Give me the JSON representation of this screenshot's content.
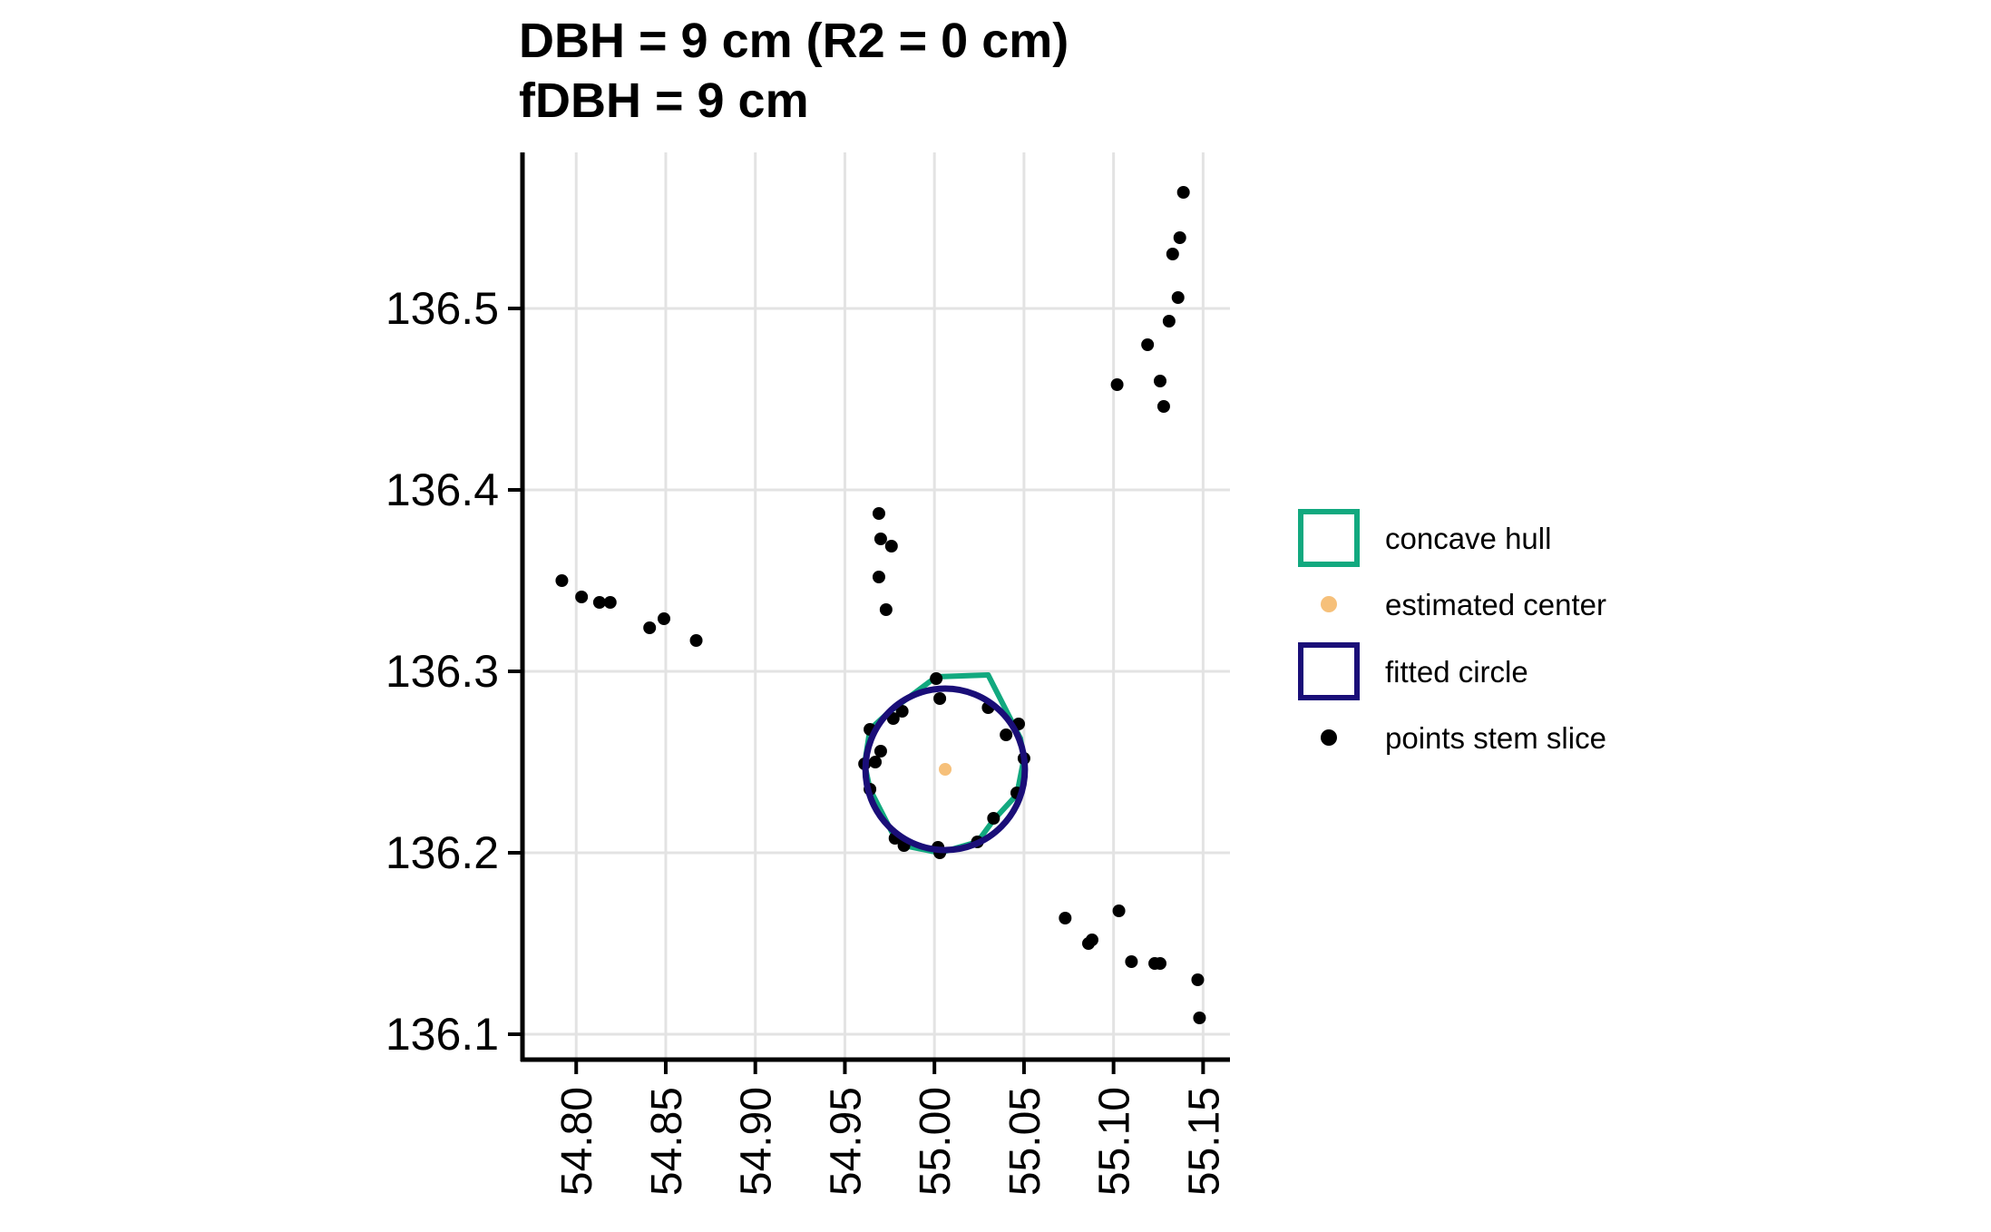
{
  "chart_data": {
    "type": "scatter",
    "title_lines": [
      "DBH = 9 cm (R2 = 0 cm)",
      "fDBH = 9 cm"
    ],
    "xlabel": "",
    "ylabel": "",
    "xlim": [
      54.77,
      55.165
    ],
    "ylim": [
      136.086,
      136.586
    ],
    "x_ticks": [
      54.8,
      54.85,
      54.9,
      54.95,
      55.0,
      55.05,
      55.1,
      55.15
    ],
    "x_tick_labels": [
      "54.80",
      "54.85",
      "54.90",
      "54.95",
      "55.00",
      "55.05",
      "55.10",
      "55.15"
    ],
    "y_ticks": [
      136.1,
      136.2,
      136.3,
      136.4,
      136.5
    ],
    "y_tick_labels": [
      "136.1",
      "136.2",
      "136.3",
      "136.4",
      "136.5"
    ],
    "grid": true,
    "legend_position": "right",
    "legend": [
      {
        "label": "concave hull",
        "kind": "hull-square"
      },
      {
        "label": "estimated center",
        "kind": "center-dot"
      },
      {
        "label": "fitted circle",
        "kind": "circle-square"
      },
      {
        "label": "points stem slice",
        "kind": "point-dot"
      }
    ],
    "colors": {
      "hull": "#12a97f",
      "circle": "#1a0e78",
      "center": "#f6c07a",
      "points": "#000000",
      "grid": "#e3e3e3"
    },
    "fitted_circle": {
      "cx": 55.006,
      "cy": 136.246,
      "r": 0.0445
    },
    "estimated_center": {
      "x": 55.006,
      "y": 136.246
    },
    "concave_hull": [
      [
        55.001,
        136.297
      ],
      [
        55.03,
        136.298
      ],
      [
        55.048,
        136.263
      ],
      [
        55.05,
        136.252
      ],
      [
        55.046,
        136.232
      ],
      [
        55.033,
        136.218
      ],
      [
        55.024,
        136.206
      ],
      [
        55.003,
        136.2
      ],
      [
        54.983,
        136.204
      ],
      [
        54.978,
        136.208
      ],
      [
        54.964,
        136.235
      ],
      [
        54.961,
        136.249
      ],
      [
        54.964,
        136.268
      ],
      [
        54.974,
        136.277
      ],
      [
        55.001,
        136.297
      ]
    ],
    "points": [
      [
        54.792,
        136.35
      ],
      [
        54.803,
        136.341
      ],
      [
        54.813,
        136.338
      ],
      [
        54.819,
        136.338
      ],
      [
        54.841,
        136.324
      ],
      [
        54.849,
        136.329
      ],
      [
        54.867,
        136.317
      ],
      [
        54.969,
        136.387
      ],
      [
        54.97,
        136.373
      ],
      [
        54.976,
        136.369
      ],
      [
        54.969,
        136.352
      ],
      [
        54.973,
        136.334
      ],
      [
        55.102,
        136.458
      ],
      [
        55.119,
        136.48
      ],
      [
        55.126,
        136.46
      ],
      [
        55.128,
        136.446
      ],
      [
        55.131,
        136.493
      ],
      [
        55.136,
        136.506
      ],
      [
        55.133,
        136.53
      ],
      [
        55.137,
        136.539
      ],
      [
        55.139,
        136.564
      ],
      [
        55.073,
        136.164
      ],
      [
        55.086,
        136.15
      ],
      [
        55.088,
        136.152
      ],
      [
        55.103,
        136.168
      ],
      [
        55.11,
        136.14
      ],
      [
        55.123,
        136.139
      ],
      [
        55.126,
        136.139
      ],
      [
        55.147,
        136.13
      ],
      [
        55.148,
        136.109
      ],
      [
        55.001,
        136.296
      ],
      [
        55.003,
        136.285
      ],
      [
        55.03,
        136.28
      ],
      [
        55.047,
        136.271
      ],
      [
        55.04,
        136.265
      ],
      [
        55.05,
        136.252
      ],
      [
        55.046,
        136.233
      ],
      [
        55.033,
        136.219
      ],
      [
        55.024,
        136.206
      ],
      [
        55.003,
        136.2
      ],
      [
        55.002,
        136.203
      ],
      [
        54.983,
        136.204
      ],
      [
        54.978,
        136.208
      ],
      [
        54.964,
        136.235
      ],
      [
        54.961,
        136.249
      ],
      [
        54.964,
        136.268
      ],
      [
        54.967,
        136.25
      ],
      [
        54.97,
        136.256
      ],
      [
        54.977,
        136.274
      ],
      [
        54.982,
        136.278
      ]
    ]
  }
}
